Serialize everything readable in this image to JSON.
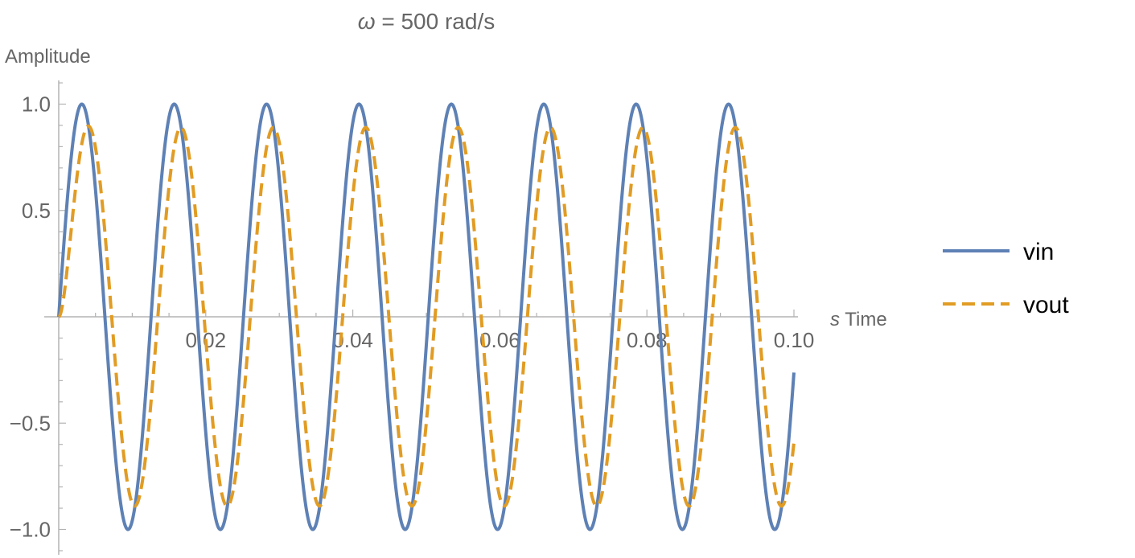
{
  "chart_data": {
    "type": "line",
    "title": "ω = 500 rad/s",
    "title_parts": {
      "symbol": "ω",
      "rest": " = 500 rad/s"
    },
    "xlabel": "Time",
    "xunit": "s",
    "ylabel": "Amplitude",
    "xlim": [
      0,
      0.1
    ],
    "ylim": [
      -1.1,
      1.1
    ],
    "x_ticks": [
      0.02,
      0.04,
      0.06,
      0.08,
      0.1
    ],
    "x_tick_labels": [
      "0.02",
      "0.04",
      "0.06",
      "0.08",
      "0.10"
    ],
    "y_ticks": [
      -1.0,
      -0.5,
      0.5,
      1.0
    ],
    "y_tick_labels": [
      "−1.0",
      "−0.5",
      "0.5",
      "1.0"
    ],
    "grid": false,
    "legend_position": "right",
    "series": [
      {
        "name": "vin",
        "color": "#5E81B5",
        "style": "solid",
        "omega": 500,
        "amplitude": 1.0,
        "phase_lag": 0,
        "starts_at_zero": true
      },
      {
        "name": "vout",
        "color": "#E19C24",
        "style": "dashed",
        "omega": 500,
        "amplitude": 0.89,
        "phase_lag": 0.46,
        "starts_at_zero": true
      }
    ]
  }
}
